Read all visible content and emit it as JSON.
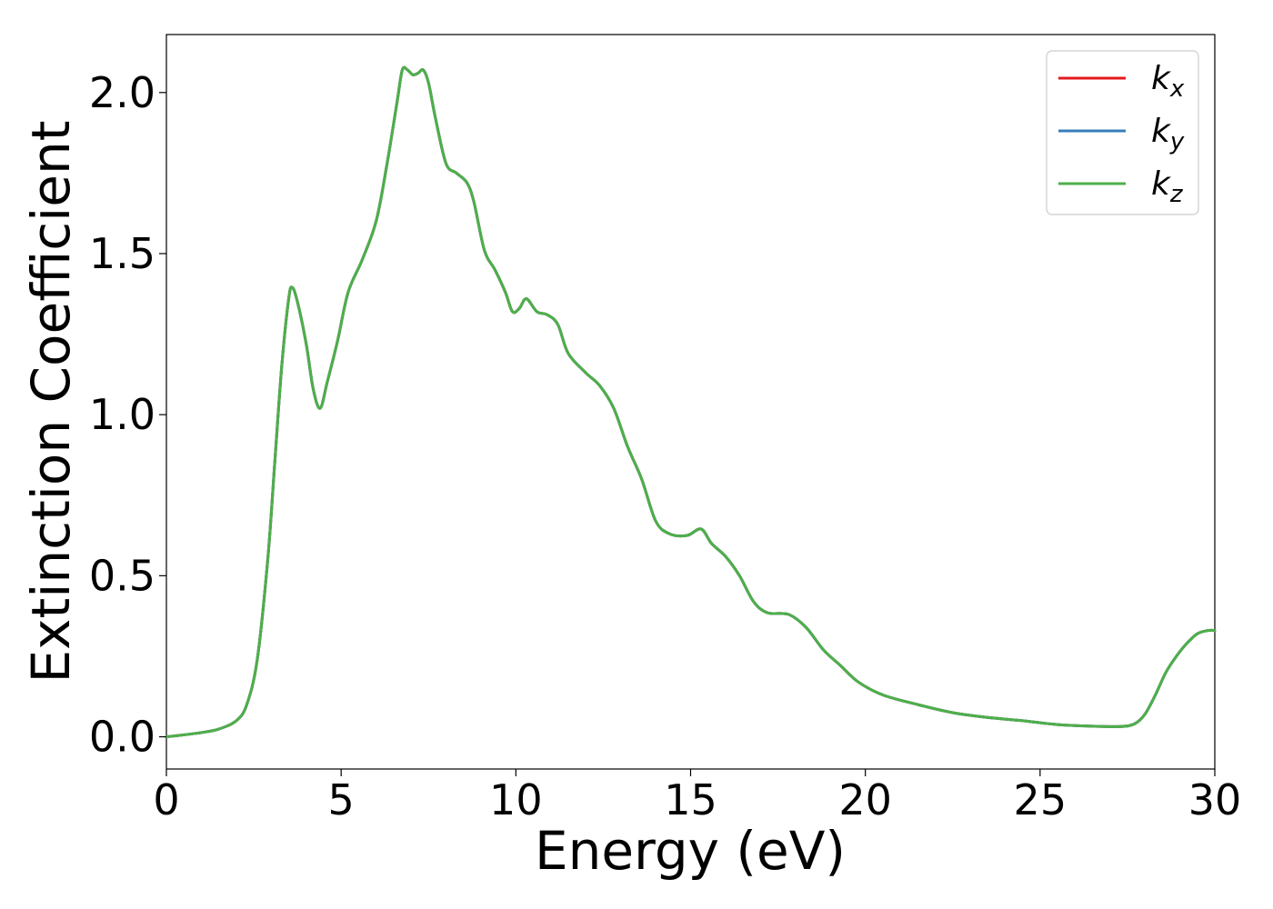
{
  "chart_data": {
    "type": "line",
    "title": "",
    "xlabel": "Energy (eV)",
    "ylabel": "Extinction Coefficient",
    "xlim": [
      0,
      30
    ],
    "ylim": [
      -0.1,
      2.18
    ],
    "xticks": [
      0,
      5,
      10,
      15,
      20,
      25,
      30
    ],
    "xtick_labels": [
      "0",
      "5",
      "10",
      "15",
      "20",
      "25",
      "30"
    ],
    "yticks": [
      0.0,
      0.5,
      1.0,
      1.5,
      2.0
    ],
    "ytick_labels": [
      "0.0",
      "0.5",
      "1.0",
      "1.5",
      "2.0"
    ],
    "grid": false,
    "legend_position": "top-right",
    "x": [
      0,
      0.5,
      1.0,
      1.5,
      2.0,
      2.3,
      2.6,
      2.9,
      3.1,
      3.3,
      3.5,
      3.6,
      3.75,
      4.0,
      4.2,
      4.4,
      4.6,
      4.9,
      5.2,
      5.6,
      6.0,
      6.3,
      6.6,
      6.75,
      6.9,
      7.05,
      7.2,
      7.35,
      7.5,
      7.7,
      8.0,
      8.3,
      8.6,
      8.8,
      9.1,
      9.4,
      9.7,
      9.9,
      10.1,
      10.3,
      10.6,
      10.9,
      11.2,
      11.5,
      12.0,
      12.4,
      12.8,
      13.2,
      13.6,
      14.0,
      14.4,
      14.9,
      15.3,
      15.6,
      16.0,
      16.4,
      16.8,
      17.2,
      17.8,
      18.3,
      18.8,
      19.3,
      19.8,
      20.5,
      21.5,
      22.5,
      23.5,
      24.5,
      25.5,
      26.5,
      27.3,
      27.7,
      28.0,
      28.3,
      28.6,
      28.9,
      29.2,
      29.5,
      29.8,
      30.0
    ],
    "series": [
      {
        "name": "kx",
        "color": "#e41a1c",
        "y": [
          0.0,
          0.006,
          0.013,
          0.024,
          0.05,
          0.1,
          0.24,
          0.55,
          0.85,
          1.15,
          1.36,
          1.395,
          1.35,
          1.22,
          1.08,
          1.02,
          1.1,
          1.23,
          1.38,
          1.48,
          1.6,
          1.77,
          1.97,
          2.07,
          2.07,
          2.055,
          2.06,
          2.07,
          2.03,
          1.92,
          1.78,
          1.75,
          1.72,
          1.66,
          1.51,
          1.45,
          1.38,
          1.32,
          1.33,
          1.36,
          1.32,
          1.31,
          1.28,
          1.19,
          1.13,
          1.09,
          1.02,
          0.9,
          0.8,
          0.67,
          0.63,
          0.625,
          0.645,
          0.6,
          0.56,
          0.5,
          0.42,
          0.385,
          0.38,
          0.34,
          0.27,
          0.22,
          0.17,
          0.13,
          0.1,
          0.075,
          0.06,
          0.05,
          0.038,
          0.033,
          0.032,
          0.04,
          0.07,
          0.13,
          0.2,
          0.25,
          0.29,
          0.32,
          0.33,
          0.33
        ]
      },
      {
        "name": "ky",
        "color": "#377eb8",
        "y": [
          0.0,
          0.006,
          0.013,
          0.024,
          0.05,
          0.1,
          0.24,
          0.55,
          0.85,
          1.15,
          1.36,
          1.395,
          1.35,
          1.22,
          1.08,
          1.02,
          1.1,
          1.23,
          1.38,
          1.48,
          1.6,
          1.77,
          1.97,
          2.07,
          2.07,
          2.055,
          2.06,
          2.07,
          2.03,
          1.92,
          1.78,
          1.75,
          1.72,
          1.66,
          1.51,
          1.45,
          1.38,
          1.32,
          1.33,
          1.36,
          1.32,
          1.31,
          1.28,
          1.19,
          1.13,
          1.09,
          1.02,
          0.9,
          0.8,
          0.67,
          0.63,
          0.625,
          0.645,
          0.6,
          0.56,
          0.5,
          0.42,
          0.385,
          0.38,
          0.34,
          0.27,
          0.22,
          0.17,
          0.13,
          0.1,
          0.075,
          0.06,
          0.05,
          0.038,
          0.033,
          0.032,
          0.04,
          0.07,
          0.13,
          0.2,
          0.25,
          0.29,
          0.32,
          0.33,
          0.33
        ]
      },
      {
        "name": "kz",
        "color": "#4daf4a",
        "y": [
          0.0,
          0.006,
          0.013,
          0.024,
          0.05,
          0.1,
          0.24,
          0.55,
          0.85,
          1.15,
          1.36,
          1.395,
          1.35,
          1.22,
          1.08,
          1.02,
          1.1,
          1.23,
          1.38,
          1.48,
          1.6,
          1.77,
          1.97,
          2.07,
          2.07,
          2.055,
          2.06,
          2.07,
          2.03,
          1.92,
          1.78,
          1.75,
          1.72,
          1.66,
          1.51,
          1.45,
          1.38,
          1.32,
          1.33,
          1.36,
          1.32,
          1.31,
          1.28,
          1.19,
          1.13,
          1.09,
          1.02,
          0.9,
          0.8,
          0.67,
          0.63,
          0.625,
          0.645,
          0.6,
          0.56,
          0.5,
          0.42,
          0.385,
          0.38,
          0.34,
          0.27,
          0.22,
          0.17,
          0.13,
          0.1,
          0.075,
          0.06,
          0.05,
          0.038,
          0.033,
          0.032,
          0.04,
          0.07,
          0.13,
          0.2,
          0.25,
          0.29,
          0.32,
          0.33,
          0.33
        ]
      }
    ],
    "legend": [
      {
        "base": "k",
        "sub": "x",
        "color": "#e41a1c"
      },
      {
        "base": "k",
        "sub": "y",
        "color": "#377eb8"
      },
      {
        "base": "k",
        "sub": "z",
        "color": "#4daf4a"
      }
    ]
  }
}
